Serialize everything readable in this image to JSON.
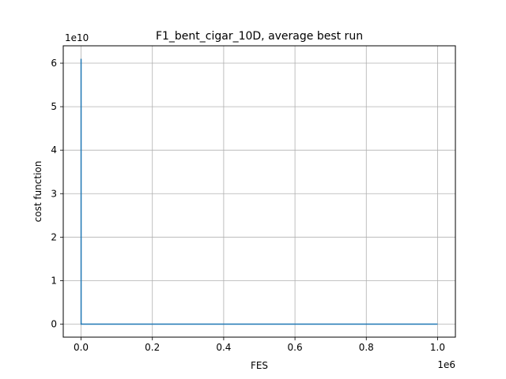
{
  "chart_data": {
    "type": "line",
    "title": "F1_bent_cigar_10D, average best run",
    "xlabel": "FES",
    "ylabel": "cost function",
    "x_offset_text": "1e6",
    "y_offset_text": "1e10",
    "x_ticks": [
      0,
      200000,
      400000,
      600000,
      800000,
      1000000
    ],
    "x_tick_labels": [
      "0.0",
      "0.2",
      "0.4",
      "0.6",
      "0.8",
      "1.0"
    ],
    "y_ticks": [
      0,
      10000000000,
      20000000000,
      30000000000,
      40000000000,
      50000000000,
      60000000000
    ],
    "y_tick_labels": [
      "0",
      "1",
      "2",
      "3",
      "4",
      "5",
      "6"
    ],
    "xlim": [
      -50000,
      1050000
    ],
    "ylim": [
      -3000000000,
      64000000000
    ],
    "grid": true,
    "line_color": "#1f77b4",
    "series": [
      {
        "x": [
          0,
          100,
          1000,
          10000,
          1000000
        ],
        "y": [
          61000000000,
          0,
          0,
          0,
          0
        ]
      }
    ]
  }
}
